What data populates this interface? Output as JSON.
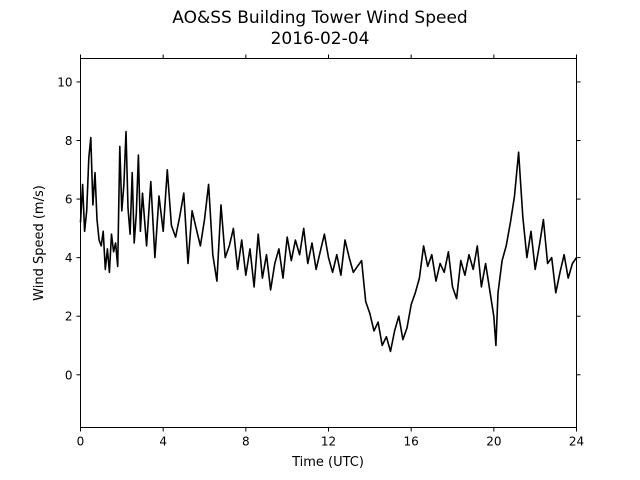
{
  "chart_data": {
    "type": "line",
    "title": "AO&SS Building Tower Wind Speed",
    "subtitle": "2016-02-04",
    "xlabel": "Time (UTC)",
    "ylabel": "Wind Speed (m/s)",
    "xlim": [
      0,
      24
    ],
    "ylim": [
      -1.8,
      10.8
    ],
    "xticks": [
      0,
      4,
      8,
      12,
      16,
      20,
      24
    ],
    "yticks": [
      0,
      2,
      4,
      6,
      8,
      10
    ],
    "grid": false,
    "line_color": "#000000",
    "series": [
      {
        "x": [
          0.0,
          0.1,
          0.2,
          0.3,
          0.4,
          0.5,
          0.6,
          0.7,
          0.8,
          0.9,
          1.0,
          1.1,
          1.2,
          1.3,
          1.4,
          1.5,
          1.6,
          1.7,
          1.8,
          1.9,
          2.0,
          2.1,
          2.2,
          2.3,
          2.4,
          2.5,
          2.6,
          2.7,
          2.8,
          2.9,
          3.0,
          3.2,
          3.4,
          3.6,
          3.8,
          4.0,
          4.2,
          4.4,
          4.6,
          4.8,
          5.0,
          5.2,
          5.4,
          5.6,
          5.8,
          6.0,
          6.2,
          6.4,
          6.6,
          6.8,
          7.0,
          7.2,
          7.4,
          7.6,
          7.8,
          8.0,
          8.2,
          8.4,
          8.6,
          8.8,
          9.0,
          9.2,
          9.4,
          9.6,
          9.8,
          10.0,
          10.2,
          10.4,
          10.6,
          10.8,
          11.0,
          11.2,
          11.4,
          11.6,
          11.8,
          12.0,
          12.2,
          12.4,
          12.6,
          12.8,
          13.0,
          13.2,
          13.4,
          13.6,
          13.8,
          14.0,
          14.2,
          14.4,
          14.6,
          14.8,
          15.0,
          15.2,
          15.4,
          15.6,
          15.8,
          16.0,
          16.2,
          16.4,
          16.6,
          16.8,
          17.0,
          17.2,
          17.4,
          17.6,
          17.8,
          18.0,
          18.2,
          18.4,
          18.6,
          18.8,
          19.0,
          19.2,
          19.4,
          19.6,
          19.8,
          20.0,
          20.1,
          20.2,
          20.4,
          20.6,
          20.8,
          21.0,
          21.2,
          21.4,
          21.6,
          21.8,
          22.0,
          22.2,
          22.4,
          22.6,
          22.8,
          23.0,
          23.2,
          23.4,
          23.6,
          23.8,
          24.0
        ],
        "y": [
          5.2,
          6.5,
          4.9,
          5.6,
          7.4,
          8.1,
          5.8,
          6.9,
          5.3,
          4.6,
          4.4,
          4.9,
          3.6,
          4.3,
          3.5,
          4.8,
          4.2,
          4.5,
          3.7,
          7.8,
          5.6,
          6.5,
          8.3,
          5.7,
          4.8,
          6.9,
          4.5,
          5.5,
          7.5,
          4.9,
          6.2,
          4.4,
          6.6,
          4.0,
          6.1,
          4.9,
          7.0,
          5.1,
          4.7,
          5.4,
          6.2,
          3.8,
          5.6,
          5.0,
          4.4,
          5.3,
          6.5,
          4.1,
          3.2,
          5.8,
          4.0,
          4.4,
          5.0,
          3.6,
          4.6,
          3.4,
          4.3,
          3.0,
          4.8,
          3.3,
          4.1,
          2.9,
          3.8,
          4.3,
          3.3,
          4.7,
          3.9,
          4.6,
          4.1,
          5.0,
          3.8,
          4.5,
          3.6,
          4.2,
          4.8,
          4.0,
          3.5,
          4.1,
          3.4,
          4.6,
          4.0,
          3.5,
          3.7,
          3.9,
          2.5,
          2.1,
          1.5,
          1.8,
          1.0,
          1.3,
          0.8,
          1.5,
          2.0,
          1.2,
          1.6,
          2.4,
          2.8,
          3.3,
          4.4,
          3.7,
          4.1,
          3.2,
          3.8,
          3.5,
          4.2,
          3.0,
          2.6,
          3.9,
          3.4,
          4.1,
          3.6,
          4.4,
          3.0,
          3.8,
          2.9,
          2.0,
          1.0,
          2.8,
          3.9,
          4.4,
          5.2,
          6.1,
          7.6,
          5.4,
          4.0,
          4.9,
          3.6,
          4.4,
          5.3,
          3.8,
          4.0,
          2.8,
          3.5,
          4.1,
          3.3,
          3.8,
          4.0
        ]
      }
    ]
  }
}
